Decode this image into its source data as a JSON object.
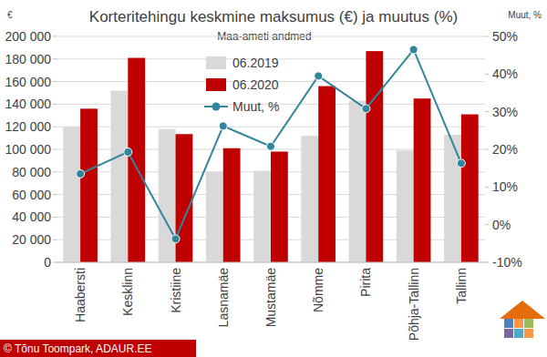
{
  "chart_data": {
    "type": "bar",
    "title": "Korteritehingu keskmine maksumus (€) ja muutus (%)",
    "subtitle": "Maa-ameti andmed",
    "y_label": "€",
    "y2_label": "Muut, %",
    "source": "© Tõnu Toompark, ADAUR.EE",
    "categories": [
      "Haabersti",
      "Kesklinn",
      "Kristiine",
      "Lasnamäe",
      "Mustamäe",
      "Nõmme",
      "Pirita",
      "Põhja-Tallinn",
      "Tallinn"
    ],
    "series": [
      {
        "name": "06.2019",
        "color": "#d9d9d9",
        "values": [
          120000,
          152000,
          118000,
          80000,
          81000,
          112000,
          143000,
          99000,
          113000
        ]
      },
      {
        "name": "06.2020",
        "color": "#c00000",
        "values": [
          136000,
          181000,
          113500,
          101000,
          98000,
          156000,
          187000,
          145000,
          131000
        ]
      },
      {
        "name": "Muut, %",
        "color": "#31859c",
        "type": "line",
        "marker": "circle",
        "axis": "y2",
        "values": [
          13.5,
          19.3,
          -3.8,
          26.2,
          20.8,
          39.5,
          30.8,
          46.5,
          16.3
        ]
      }
    ],
    "ylim": [
      0,
      200000
    ],
    "yticks": [
      0,
      {
        "value": 20000,
        "label": "20 000"
      },
      {
        "value": 40000,
        "label": "40 000"
      },
      {
        "value": 60000,
        "label": "60 000"
      },
      {
        "value": 80000,
        "label": "80 000"
      },
      {
        "value": 100000,
        "label": "100 000"
      },
      {
        "value": 120000,
        "label": "120 000"
      },
      {
        "value": 140000,
        "label": "140 000"
      },
      {
        "value": 160000,
        "label": "160 000"
      },
      {
        "value": 180000,
        "label": "180 000"
      },
      {
        "value": 200000,
        "label": "200 000"
      }
    ],
    "y2lim": [
      -10,
      50
    ],
    "y2ticks": [
      {
        "value": -10,
        "label": "-10%"
      },
      {
        "value": 0,
        "label": "0%"
      },
      {
        "value": 10,
        "label": "10%"
      },
      {
        "value": 20,
        "label": "20%"
      },
      {
        "value": 30,
        "label": "30%"
      },
      {
        "value": 40,
        "label": "40%"
      },
      {
        "value": 50,
        "label": "50%"
      }
    ],
    "grid": true,
    "legend": "top"
  }
}
